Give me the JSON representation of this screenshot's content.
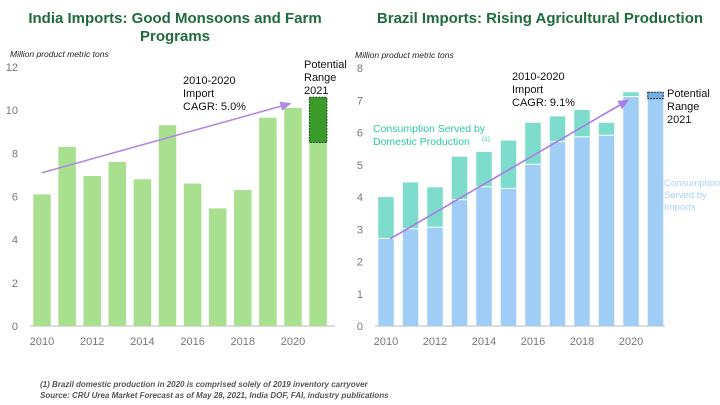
{
  "footnotes": [
    "(1) Brazil domestic production in 2020 is comprised solely of 2019 inventory carryover",
    "Source: CRU Urea Market Forecast as of May 28, 2021, India DOF, FAI, industry publications"
  ],
  "chart_data": [
    {
      "type": "bar",
      "title": "India Imports: Good Monsoons and Farm Programs",
      "ylabel": "Million product metric tons",
      "ylim": [
        0,
        12
      ],
      "yticks": [
        0,
        2,
        4,
        6,
        8,
        10,
        12
      ],
      "xticks": [
        "2010",
        "2012",
        "2014",
        "2016",
        "2018",
        "2020"
      ],
      "categories": [
        "2010",
        "2011",
        "2012",
        "2013",
        "2014",
        "2015",
        "2016",
        "2017",
        "2018",
        "2019",
        "2020",
        "2021"
      ],
      "values": [
        6.1,
        8.3,
        6.95,
        7.6,
        6.8,
        9.3,
        6.6,
        5.45,
        6.3,
        9.65,
        10.1,
        8.5
      ],
      "range_2021": [
        8.5,
        10.6
      ],
      "range_label": [
        "Potential",
        "Range",
        "2021"
      ],
      "annotation": [
        "2010-2020",
        "Import",
        "CAGR: 5.0%"
      ],
      "trend": [
        7.1,
        10.3
      ],
      "colors": {
        "bar": "#a8e090",
        "range": "#3a9a2a",
        "trend": "#b08ae0"
      }
    },
    {
      "type": "bar",
      "stacked": true,
      "title": "Brazil Imports: Rising Agricultural Production",
      "ylabel": "Million product metric tons",
      "ylim": [
        0,
        8
      ],
      "yticks": [
        0,
        1,
        2,
        3,
        4,
        5,
        6,
        7,
        8
      ],
      "xticks": [
        "2010",
        "2012",
        "2014",
        "2016",
        "2018",
        "2020"
      ],
      "categories": [
        "2010",
        "2011",
        "2012",
        "2013",
        "2014",
        "2015",
        "2016",
        "2017",
        "2018",
        "2019",
        "2020",
        "2021"
      ],
      "series": [
        {
          "name": "Consumption Served by Imports",
          "values": [
            2.7,
            3.0,
            3.05,
            3.9,
            4.3,
            4.25,
            5.0,
            5.7,
            5.85,
            5.9,
            7.1,
            7.05
          ]
        },
        {
          "name": "Consumption Served by Domestic Production (1)",
          "values": [
            1.3,
            1.45,
            1.25,
            1.35,
            1.1,
            1.5,
            1.3,
            0.8,
            0.85,
            0.4,
            0.15,
            0
          ]
        }
      ],
      "range_2021": [
        7.05,
        7.25
      ],
      "range_label": [
        "Potential",
        "Range",
        "2021"
      ],
      "annotation": [
        "2010-2020",
        "Import",
        "CAGR: 9.1%"
      ],
      "trend": [
        2.7,
        7.0
      ],
      "legend_labels": {
        "domestic": [
          "Consumption Served by",
          "Domestic Production"
        ],
        "domestic_sup": "(1)",
        "imports": [
          "Consumption",
          "Served by",
          "Imports"
        ]
      },
      "colors": {
        "imports": "#9fcdf5",
        "domestic": "#7ddccb",
        "range": "#6fb0e6",
        "trend": "#a97de6",
        "domestic_text": "#2fc9a8",
        "imports_text": "#a9d2f5"
      }
    }
  ]
}
